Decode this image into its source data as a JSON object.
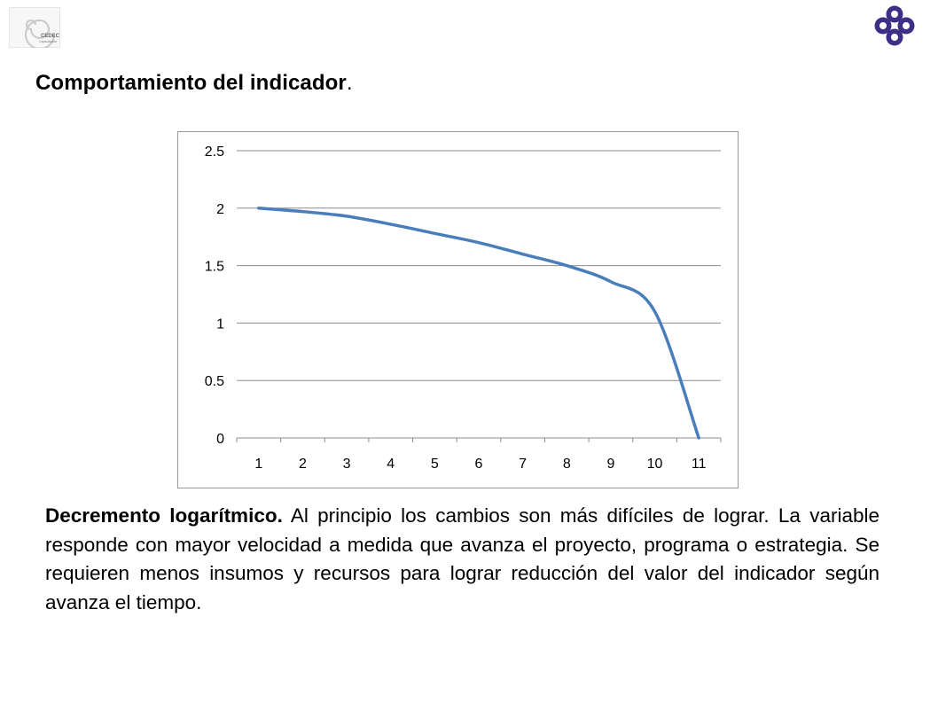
{
  "header": {
    "left_logo_text": "CEDEC",
    "left_logo_subtext": "Capacitación",
    "right_logo_icon": "quatrefoil-logo-icon"
  },
  "page": {
    "heading": "Comportamiento del indicador",
    "heading_dot": "."
  },
  "chart_data": {
    "type": "line",
    "title": "",
    "xlabel": "",
    "ylabel": "",
    "categories": [
      "1",
      "2",
      "3",
      "4",
      "5",
      "6",
      "7",
      "8",
      "9",
      "10",
      "11"
    ],
    "series": [
      {
        "values": [
          2.0,
          1.97,
          1.93,
          1.86,
          1.78,
          1.7,
          1.6,
          1.5,
          1.36,
          1.1,
          0.0
        ],
        "color": "#4a7ebb"
      }
    ],
    "ylim": [
      0,
      2.5
    ],
    "yticks": [
      "0",
      "0.5",
      "1",
      "1.5",
      "2",
      "2.5"
    ],
    "grid": true,
    "legend": "none"
  },
  "description": {
    "lead": "Decremento logarítmico.",
    "body": " Al principio los cambios son más difíciles de lograr. La variable responde con mayor velocidad a medida que avanza el proyecto, programa o estrategia. Se requieren menos insumos y recursos para lograr reducción del valor del indicador según avanza el tiempo."
  }
}
